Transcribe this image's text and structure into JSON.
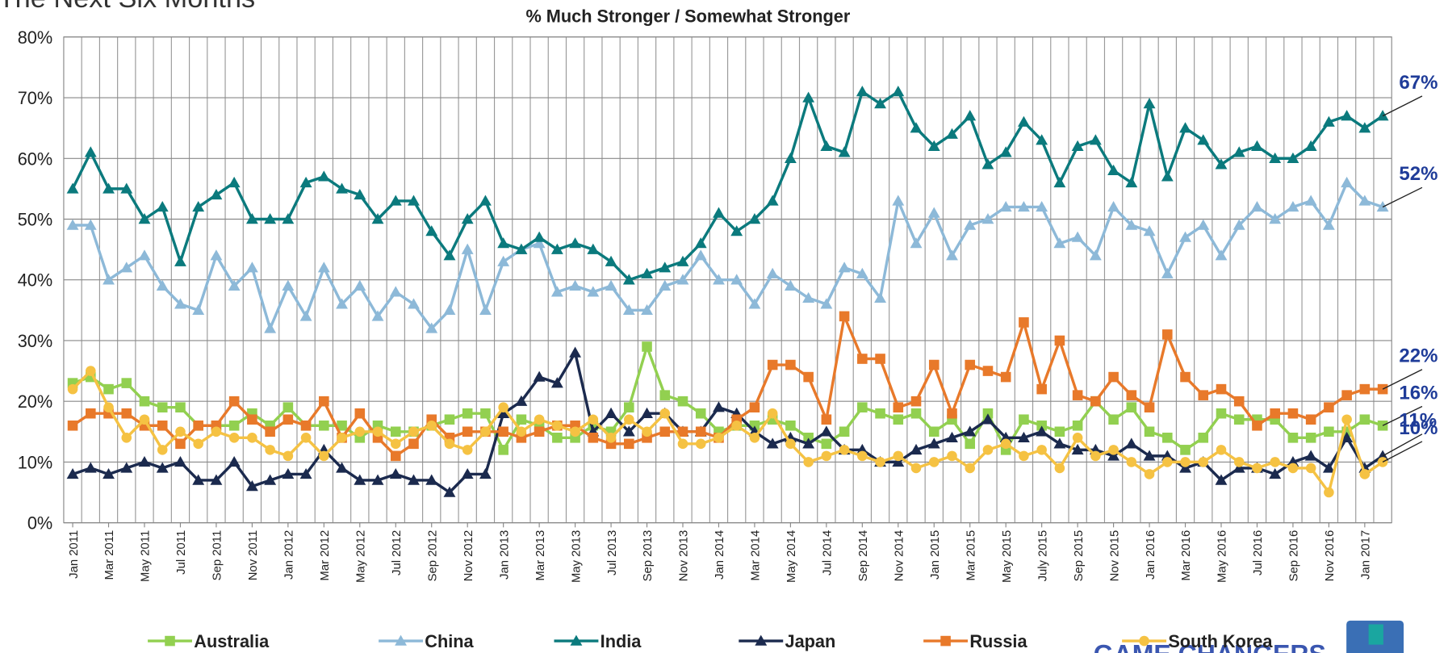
{
  "chart_data": {
    "type": "line",
    "title": "The Next Six Months",
    "subtitle": "% Much Stronger / Somewhat Stronger",
    "categories": [
      "Jan 2011",
      null,
      "Mar 2011",
      null,
      "May 2011",
      null,
      "Jul 2011",
      null,
      "Sep 2011",
      null,
      "Nov 2011",
      null,
      "Jan 2012",
      null,
      "Mar 2012",
      null,
      "May 2012",
      null,
      "Jul 2012",
      null,
      "Sep 2012",
      null,
      "Nov 2012",
      null,
      "Jan 2013",
      null,
      "Mar 2013",
      null,
      "May 2013",
      null,
      "Jul 2013",
      null,
      "Sep 2013",
      null,
      "Nov 2013",
      null,
      "Jan 2014",
      null,
      "Mar 2014",
      null,
      "May 2014",
      null,
      "Jul 2014",
      null,
      "Sep 2014",
      null,
      "Nov 2014",
      null,
      "Jan 2015",
      null,
      "Mar 2015",
      null,
      "May 2015",
      null,
      "July 2015",
      null,
      "Sep 2015",
      null,
      "Nov 2015",
      null,
      "Jan 2016",
      null,
      "Mar 2016",
      null,
      "May 2016",
      null,
      "Jul 2016",
      null,
      "Sep 2016",
      null,
      "Nov 2016",
      null,
      "Jan 2017",
      null
    ],
    "ylim": [
      0,
      80
    ],
    "yticks": [
      {
        "value": 0,
        "label": "0%"
      },
      {
        "value": 10,
        "label": "10%"
      },
      {
        "value": 20,
        "label": "20%"
      },
      {
        "value": 30,
        "label": "30%"
      },
      {
        "value": 40,
        "label": "40%"
      },
      {
        "value": 50,
        "label": "50%"
      },
      {
        "value": 60,
        "label": "60%"
      },
      {
        "value": 70,
        "label": "70%"
      },
      {
        "value": 80,
        "label": "80%"
      }
    ],
    "grid": true,
    "legend": "bottom",
    "series": [
      {
        "name": "Australia",
        "color": "#92d050",
        "marker": "square",
        "values": [
          23,
          24,
          22,
          23,
          20,
          19,
          19,
          16,
          16,
          16,
          18,
          16,
          19,
          16,
          16,
          16,
          14,
          16,
          15,
          15,
          16,
          17,
          18,
          18,
          12,
          17,
          16,
          14,
          14,
          16,
          15,
          19,
          29,
          21,
          20,
          18,
          15,
          16,
          16,
          17,
          16,
          14,
          13,
          15,
          19,
          18,
          17,
          18,
          15,
          17,
          13,
          18,
          12,
          17,
          16,
          15,
          16,
          20,
          17,
          19,
          15,
          14,
          12,
          14,
          18,
          17,
          17,
          17,
          14,
          14,
          15,
          15,
          17,
          16
        ],
        "end_label": "16%"
      },
      {
        "name": "China",
        "color": "#8db9d8",
        "marker": "triangle",
        "values": [
          49,
          49,
          40,
          42,
          44,
          39,
          36,
          35,
          44,
          39,
          42,
          32,
          39,
          34,
          42,
          36,
          39,
          34,
          38,
          36,
          32,
          35,
          45,
          35,
          43,
          45,
          46,
          38,
          39,
          38,
          39,
          35,
          35,
          39,
          40,
          44,
          40,
          40,
          36,
          41,
          39,
          37,
          36,
          42,
          41,
          37,
          53,
          46,
          51,
          44,
          49,
          50,
          52,
          52,
          52,
          46,
          47,
          44,
          52,
          49,
          48,
          41,
          47,
          49,
          44,
          49,
          52,
          50,
          52,
          53,
          49,
          56,
          53,
          52
        ],
        "end_label": "52%"
      },
      {
        "name": "India",
        "color": "#0b7a7d",
        "marker": "triangle",
        "values": [
          55,
          61,
          55,
          55,
          50,
          52,
          43,
          52,
          54,
          56,
          50,
          50,
          50,
          56,
          57,
          55,
          54,
          50,
          53,
          53,
          48,
          44,
          50,
          53,
          46,
          45,
          47,
          45,
          46,
          45,
          43,
          40,
          41,
          42,
          43,
          46,
          51,
          48,
          50,
          53,
          60,
          70,
          62,
          61,
          71,
          69,
          71,
          65,
          62,
          64,
          67,
          59,
          61,
          66,
          63,
          56,
          62,
          63,
          58,
          56,
          69,
          57,
          65,
          63,
          59,
          61,
          62,
          60,
          60,
          62,
          66,
          67,
          65,
          67
        ],
        "end_label": "67%"
      },
      {
        "name": "Japan",
        "color": "#1b2a4e",
        "marker": "triangle",
        "values": [
          8,
          9,
          8,
          9,
          10,
          9,
          10,
          7,
          7,
          10,
          6,
          7,
          8,
          8,
          12,
          9,
          7,
          7,
          8,
          7,
          7,
          5,
          8,
          8,
          18,
          20,
          24,
          23,
          28,
          15,
          18,
          15,
          18,
          18,
          15,
          15,
          19,
          18,
          15,
          13,
          14,
          13,
          15,
          12,
          12,
          10,
          10,
          12,
          13,
          14,
          15,
          17,
          14,
          14,
          15,
          13,
          12,
          12,
          11,
          13,
          11,
          11,
          9,
          10,
          7,
          9,
          9,
          8,
          10,
          11,
          9,
          14,
          9,
          11
        ],
        "end_label": "11%"
      },
      {
        "name": "Russia",
        "color": "#e8792a",
        "marker": "square",
        "values": [
          16,
          18,
          18,
          18,
          16,
          16,
          13,
          16,
          16,
          20,
          17,
          15,
          17,
          16,
          20,
          14,
          18,
          14,
          11,
          13,
          17,
          14,
          15,
          15,
          15,
          14,
          15,
          16,
          16,
          14,
          13,
          13,
          14,
          15,
          15,
          15,
          14,
          17,
          19,
          26,
          26,
          24,
          17,
          34,
          27,
          27,
          19,
          20,
          26,
          18,
          26,
          25,
          24,
          33,
          22,
          30,
          21,
          20,
          24,
          21,
          19,
          31,
          24,
          21,
          22,
          20,
          16,
          18,
          18,
          17,
          19,
          21,
          22,
          22
        ],
        "end_label": "22%"
      },
      {
        "name": "South Korea",
        "color": "#f5c243",
        "marker": "circle",
        "values": [
          22,
          25,
          19,
          14,
          17,
          12,
          15,
          13,
          15,
          14,
          14,
          12,
          11,
          14,
          11,
          14,
          15,
          15,
          13,
          15,
          16,
          13,
          12,
          15,
          19,
          15,
          17,
          16,
          15,
          17,
          14,
          17,
          15,
          18,
          13,
          13,
          14,
          16,
          14,
          18,
          13,
          10,
          11,
          12,
          11,
          10,
          11,
          9,
          10,
          11,
          9,
          12,
          13,
          11,
          12,
          9,
          14,
          11,
          12,
          10,
          8,
          10,
          10,
          10,
          12,
          10,
          9,
          10,
          9,
          9,
          5,
          17,
          8,
          10
        ],
        "end_label": "10%"
      }
    ]
  },
  "logo": {
    "text": "GAME CHANGERS"
  }
}
